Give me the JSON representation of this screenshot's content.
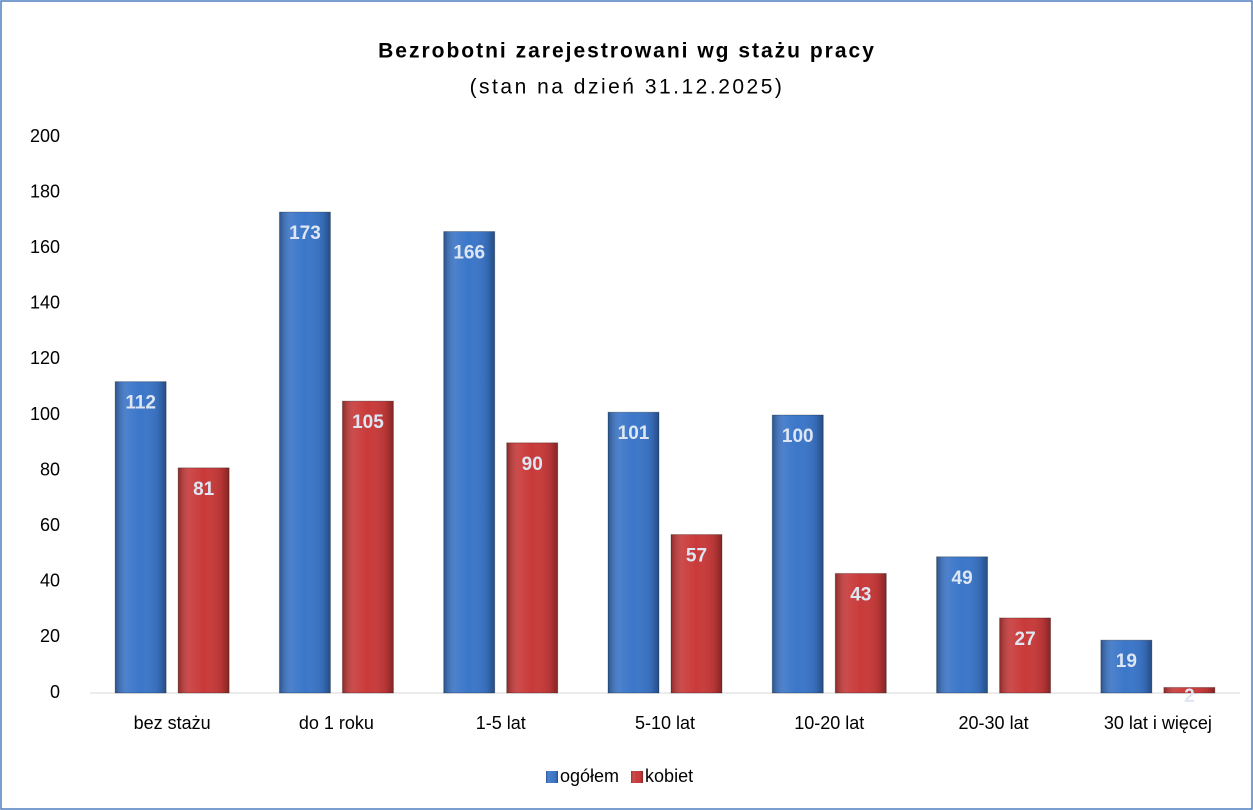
{
  "chart_data": {
    "type": "bar",
    "title": "Bezrobotni zarejestrowani wg stażu pracy",
    "subtitle": "(stan na dzień 31.12.2025)",
    "categories": [
      "bez stażu",
      "do 1 roku",
      "1-5 lat",
      "5-10 lat",
      "10-20 lat",
      "20-30 lat",
      "30 lat i więcej"
    ],
    "series": [
      {
        "name": "ogółem",
        "color": "#3b76c9",
        "values": [
          112,
          173,
          166,
          101,
          100,
          49,
          19
        ]
      },
      {
        "name": "kobiet",
        "color": "#c93a3a",
        "values": [
          81,
          105,
          90,
          57,
          43,
          27,
          2
        ]
      }
    ],
    "ylim": [
      0,
      200
    ],
    "yticks": [
      0,
      20,
      40,
      60,
      80,
      100,
      120,
      140,
      160,
      180,
      200
    ],
    "grid": false,
    "legend": "bottom"
  }
}
